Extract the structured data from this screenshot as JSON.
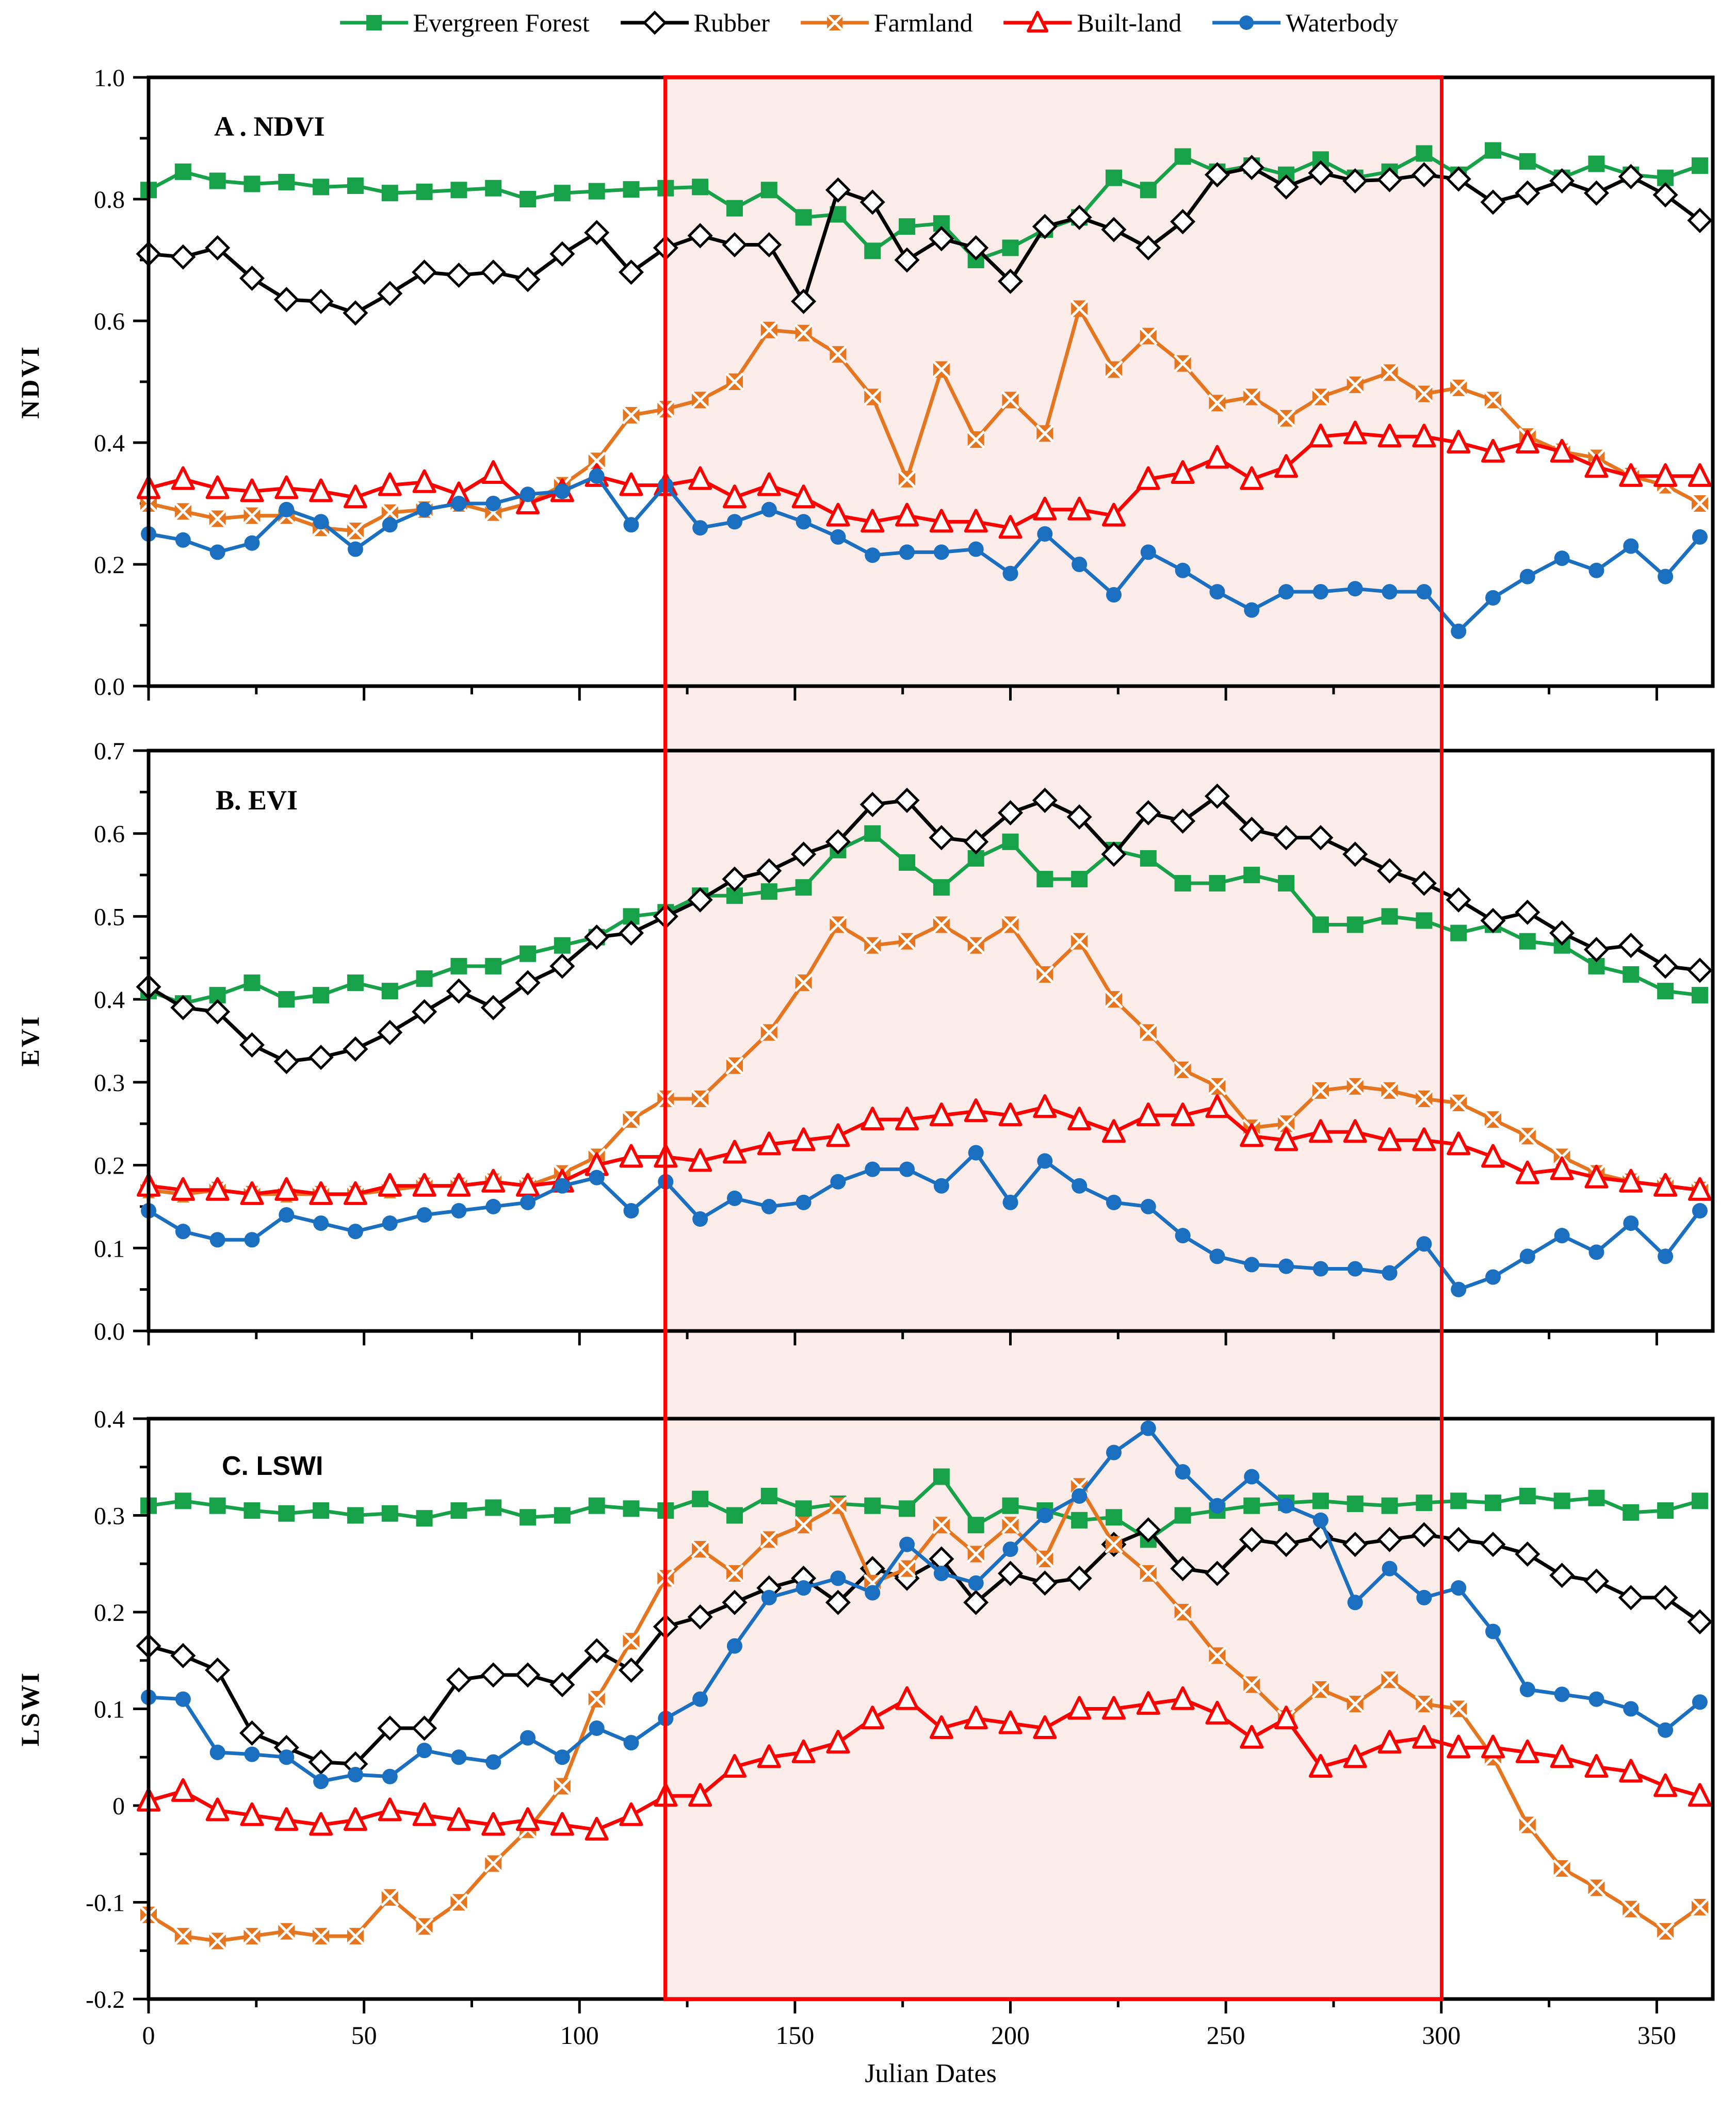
{
  "legend": {
    "items": [
      {
        "label": "Evergreen Forest",
        "marker": "square",
        "color": "#17A24A"
      },
      {
        "label": "Rubber",
        "marker": "diamond",
        "color": "#000000"
      },
      {
        "label": "Farmland",
        "marker": "bowtie",
        "color": "#E5751F"
      },
      {
        "label": "Built-land",
        "marker": "triangle",
        "color": "#FF0000"
      },
      {
        "label": "Waterbody",
        "marker": "circle",
        "color": "#1B6FC0"
      }
    ]
  },
  "highlight": {
    "x_start": 120,
    "x_end": 300,
    "fill": "#FBECE9",
    "border_color": "#FE0000"
  },
  "chart_data": {
    "type": "line",
    "x_label": "Julian Dates",
    "xlim": [
      0,
      363
    ],
    "x_ticks": [
      0,
      50,
      100,
      150,
      200,
      250,
      300,
      350
    ],
    "x_minor_step": 25,
    "x_values": [
      0,
      8,
      16,
      24,
      32,
      40,
      48,
      56,
      64,
      72,
      80,
      88,
      96,
      104,
      112,
      120,
      128,
      136,
      144,
      152,
      160,
      168,
      176,
      184,
      192,
      200,
      208,
      216,
      224,
      232,
      240,
      248,
      256,
      264,
      272,
      280,
      288,
      296,
      304,
      312,
      320,
      328,
      336,
      344,
      352,
      360
    ],
    "panels": [
      {
        "id": "A",
        "title": "A . NDVI",
        "y_label": "NDVI",
        "ylim": [
          0.0,
          1.0
        ],
        "y_tick_labels": [
          "0.0",
          "0.2",
          "0.4",
          "0.6",
          "0.8",
          "1.0"
        ],
        "y_minor_step": 0.1,
        "series": [
          {
            "name": "Evergreen Forest",
            "color": "#17A24A",
            "marker": "square",
            "values": [
              0.815,
              0.845,
              0.83,
              0.825,
              0.828,
              0.82,
              0.822,
              0.81,
              0.812,
              0.815,
              0.818,
              0.8,
              0.81,
              0.813,
              0.816,
              0.818,
              0.82,
              0.785,
              0.815,
              0.77,
              0.775,
              0.715,
              0.755,
              0.76,
              0.7,
              0.72,
              0.75,
              0.77,
              0.835,
              0.815,
              0.87,
              0.845,
              0.855,
              0.84,
              0.865,
              0.835,
              0.845,
              0.875,
              0.84,
              0.88,
              0.862,
              0.835,
              0.858,
              0.84,
              0.835,
              0.855
            ]
          },
          {
            "name": "Rubber",
            "color": "#000000",
            "marker": "diamond",
            "values": [
              0.71,
              0.705,
              0.72,
              0.67,
              0.635,
              0.632,
              0.613,
              0.645,
              0.68,
              0.675,
              0.68,
              0.668,
              0.71,
              0.745,
              0.68,
              0.72,
              0.74,
              0.725,
              0.725,
              0.632,
              0.815,
              0.795,
              0.7,
              0.735,
              0.72,
              0.665,
              0.755,
              0.77,
              0.75,
              0.72,
              0.763,
              0.84,
              0.852,
              0.82,
              0.843,
              0.83,
              0.832,
              0.84,
              0.833,
              0.795,
              0.81,
              0.83,
              0.81,
              0.837,
              0.807,
              0.765
            ]
          },
          {
            "name": "Farmland",
            "color": "#E5751F",
            "marker": "bowtie",
            "values": [
              0.3,
              0.287,
              0.275,
              0.28,
              0.28,
              0.26,
              0.255,
              0.285,
              0.29,
              0.3,
              0.285,
              0.3,
              0.33,
              0.37,
              0.445,
              0.455,
              0.47,
              0.5,
              0.585,
              0.58,
              0.545,
              0.475,
              0.34,
              0.52,
              0.405,
              0.47,
              0.415,
              0.62,
              0.52,
              0.575,
              0.53,
              0.465,
              0.475,
              0.44,
              0.475,
              0.495,
              0.515,
              0.48,
              0.49,
              0.47,
              0.41,
              0.385,
              0.375,
              0.345,
              0.33,
              0.3
            ]
          },
          {
            "name": "Built-land",
            "color": "#FF0000",
            "marker": "triangle",
            "values": [
              0.325,
              0.34,
              0.325,
              0.32,
              0.325,
              0.32,
              0.31,
              0.33,
              0.335,
              0.315,
              0.35,
              0.3,
              0.32,
              0.345,
              0.33,
              0.33,
              0.34,
              0.31,
              0.33,
              0.31,
              0.28,
              0.27,
              0.28,
              0.27,
              0.27,
              0.26,
              0.29,
              0.29,
              0.28,
              0.34,
              0.35,
              0.375,
              0.34,
              0.36,
              0.41,
              0.415,
              0.41,
              0.41,
              0.4,
              0.385,
              0.4,
              0.385,
              0.36,
              0.345,
              0.345,
              0.345
            ]
          },
          {
            "name": "Waterbody",
            "color": "#1B6FC0",
            "marker": "circle",
            "values": [
              0.25,
              0.24,
              0.22,
              0.235,
              0.29,
              0.27,
              0.225,
              0.265,
              0.29,
              0.3,
              0.3,
              0.315,
              0.32,
              0.345,
              0.265,
              0.33,
              0.26,
              0.27,
              0.29,
              0.27,
              0.245,
              0.215,
              0.22,
              0.22,
              0.225,
              0.185,
              0.25,
              0.2,
              0.15,
              0.22,
              0.19,
              0.155,
              0.125,
              0.155,
              0.155,
              0.16,
              0.155,
              0.155,
              0.09,
              0.145,
              0.18,
              0.21,
              0.19,
              0.23,
              0.18,
              0.245
            ]
          }
        ]
      },
      {
        "id": "B",
        "title": "B. EVI",
        "y_label": "EVI",
        "ylim": [
          0.0,
          0.7
        ],
        "y_tick_labels": [
          "0.0",
          "0.1",
          "0.2",
          "0.3",
          "0.4",
          "0.5",
          "0.6",
          "0.7"
        ],
        "y_minor_step": 0.05,
        "series": [
          {
            "name": "Evergreen Forest",
            "color": "#17A24A",
            "marker": "square",
            "values": [
              0.41,
              0.395,
              0.405,
              0.42,
              0.4,
              0.405,
              0.42,
              0.41,
              0.425,
              0.44,
              0.44,
              0.455,
              0.465,
              0.475,
              0.5,
              0.505,
              0.525,
              0.525,
              0.53,
              0.535,
              0.58,
              0.6,
              0.565,
              0.535,
              0.57,
              0.59,
              0.545,
              0.545,
              0.58,
              0.57,
              0.54,
              0.54,
              0.55,
              0.54,
              0.49,
              0.49,
              0.5,
              0.495,
              0.48,
              0.49,
              0.47,
              0.465,
              0.44,
              0.43,
              0.41,
              0.405
            ]
          },
          {
            "name": "Rubber",
            "color": "#000000",
            "marker": "diamond",
            "values": [
              0.415,
              0.39,
              0.385,
              0.345,
              0.325,
              0.33,
              0.34,
              0.36,
              0.385,
              0.41,
              0.39,
              0.42,
              0.44,
              0.475,
              0.48,
              0.5,
              0.52,
              0.545,
              0.555,
              0.575,
              0.59,
              0.635,
              0.64,
              0.595,
              0.59,
              0.625,
              0.64,
              0.62,
              0.575,
              0.625,
              0.615,
              0.645,
              0.605,
              0.595,
              0.595,
              0.575,
              0.555,
              0.54,
              0.52,
              0.495,
              0.505,
              0.48,
              0.46,
              0.465,
              0.44,
              0.435
            ]
          },
          {
            "name": "Farmland",
            "color": "#E5751F",
            "marker": "bowtie",
            "values": [
              0.17,
              0.165,
              0.17,
              0.165,
              0.165,
              0.165,
              0.165,
              0.17,
              0.175,
              0.175,
              0.18,
              0.175,
              0.19,
              0.21,
              0.255,
              0.28,
              0.28,
              0.32,
              0.36,
              0.42,
              0.49,
              0.465,
              0.47,
              0.49,
              0.465,
              0.49,
              0.43,
              0.47,
              0.4,
              0.36,
              0.315,
              0.295,
              0.245,
              0.25,
              0.29,
              0.295,
              0.29,
              0.28,
              0.275,
              0.255,
              0.235,
              0.21,
              0.19,
              0.18,
              0.175,
              0.17
            ]
          },
          {
            "name": "Built-land",
            "color": "#FF0000",
            "marker": "triangle",
            "values": [
              0.175,
              0.17,
              0.17,
              0.165,
              0.17,
              0.165,
              0.165,
              0.175,
              0.175,
              0.175,
              0.18,
              0.175,
              0.18,
              0.2,
              0.21,
              0.21,
              0.205,
              0.215,
              0.225,
              0.23,
              0.235,
              0.255,
              0.255,
              0.26,
              0.265,
              0.26,
              0.27,
              0.255,
              0.24,
              0.26,
              0.26,
              0.27,
              0.235,
              0.23,
              0.24,
              0.24,
              0.23,
              0.23,
              0.225,
              0.21,
              0.19,
              0.195,
              0.185,
              0.18,
              0.175,
              0.17
            ]
          },
          {
            "name": "Waterbody",
            "color": "#1B6FC0",
            "marker": "circle",
            "values": [
              0.145,
              0.12,
              0.11,
              0.11,
              0.14,
              0.13,
              0.12,
              0.13,
              0.14,
              0.145,
              0.15,
              0.155,
              0.175,
              0.185,
              0.145,
              0.18,
              0.135,
              0.16,
              0.15,
              0.155,
              0.18,
              0.195,
              0.195,
              0.175,
              0.215,
              0.155,
              0.205,
              0.175,
              0.155,
              0.15,
              0.115,
              0.09,
              0.08,
              0.078,
              0.075,
              0.075,
              0.07,
              0.105,
              0.05,
              0.065,
              0.09,
              0.115,
              0.095,
              0.13,
              0.09,
              0.145
            ]
          }
        ]
      },
      {
        "id": "C",
        "title": "C. LSWI",
        "y_label": "LSWI",
        "ylim": [
          -0.2,
          0.4
        ],
        "y_tick_labels": [
          "-0.2",
          "-0.1",
          "0",
          "0.1",
          "0.2",
          "0.3",
          "0.4"
        ],
        "y_minor_step": 0.05,
        "series": [
          {
            "name": "Evergreen Forest",
            "color": "#17A24A",
            "marker": "square",
            "values": [
              0.31,
              0.315,
              0.31,
              0.305,
              0.302,
              0.305,
              0.3,
              0.302,
              0.297,
              0.305,
              0.308,
              0.298,
              0.3,
              0.31,
              0.307,
              0.305,
              0.317,
              0.3,
              0.32,
              0.307,
              0.312,
              0.31,
              0.307,
              0.34,
              0.29,
              0.31,
              0.305,
              0.295,
              0.298,
              0.275,
              0.3,
              0.305,
              0.31,
              0.313,
              0.315,
              0.312,
              0.31,
              0.313,
              0.315,
              0.313,
              0.32,
              0.315,
              0.318,
              0.303,
              0.305,
              0.315
            ]
          },
          {
            "name": "Rubber",
            "color": "#000000",
            "marker": "diamond",
            "values": [
              0.165,
              0.155,
              0.14,
              0.075,
              0.06,
              0.045,
              0.043,
              0.08,
              0.08,
              0.13,
              0.135,
              0.135,
              0.125,
              0.16,
              0.14,
              0.185,
              0.195,
              0.21,
              0.225,
              0.235,
              0.21,
              0.245,
              0.235,
              0.255,
              0.21,
              0.24,
              0.23,
              0.235,
              0.27,
              0.285,
              0.245,
              0.24,
              0.275,
              0.27,
              0.278,
              0.27,
              0.275,
              0.28,
              0.275,
              0.27,
              0.26,
              0.238,
              0.232,
              0.215,
              0.215,
              0.19
            ]
          },
          {
            "name": "Farmland",
            "color": "#E5751F",
            "marker": "bowtie",
            "values": [
              -0.113,
              -0.135,
              -0.14,
              -0.135,
              -0.13,
              -0.135,
              -0.135,
              -0.095,
              -0.125,
              -0.1,
              -0.06,
              -0.025,
              0.02,
              0.11,
              0.17,
              0.235,
              0.265,
              0.24,
              0.275,
              0.29,
              0.31,
              0.23,
              0.245,
              0.29,
              0.26,
              0.29,
              0.255,
              0.33,
              0.27,
              0.24,
              0.2,
              0.155,
              0.125,
              0.09,
              0.12,
              0.105,
              0.13,
              0.105,
              0.1,
              0.05,
              -0.02,
              -0.065,
              -0.085,
              -0.107,
              -0.13,
              -0.105
            ]
          },
          {
            "name": "Built-land",
            "color": "#FF0000",
            "marker": "triangle",
            "values": [
              0.005,
              0.015,
              -0.005,
              -0.01,
              -0.015,
              -0.02,
              -0.015,
              -0.005,
              -0.01,
              -0.015,
              -0.02,
              -0.015,
              -0.02,
              -0.025,
              -0.01,
              0.01,
              0.01,
              0.04,
              0.05,
              0.055,
              0.065,
              0.09,
              0.11,
              0.08,
              0.09,
              0.085,
              0.08,
              0.1,
              0.1,
              0.105,
              0.11,
              0.095,
              0.07,
              0.09,
              0.04,
              0.05,
              0.065,
              0.07,
              0.06,
              0.06,
              0.055,
              0.05,
              0.04,
              0.035,
              0.02,
              0.01
            ]
          },
          {
            "name": "Waterbody",
            "color": "#1B6FC0",
            "marker": "circle",
            "values": [
              0.112,
              0.11,
              0.055,
              0.053,
              0.05,
              0.025,
              0.032,
              0.03,
              0.057,
              0.05,
              0.045,
              0.07,
              0.05,
              0.08,
              0.065,
              0.09,
              0.11,
              0.165,
              0.215,
              0.225,
              0.235,
              0.22,
              0.27,
              0.24,
              0.23,
              0.265,
              0.3,
              0.32,
              0.365,
              0.39,
              0.345,
              0.31,
              0.34,
              0.31,
              0.295,
              0.21,
              0.245,
              0.215,
              0.225,
              0.18,
              0.12,
              0.115,
              0.11,
              0.1,
              0.078,
              0.107
            ]
          }
        ]
      }
    ]
  }
}
